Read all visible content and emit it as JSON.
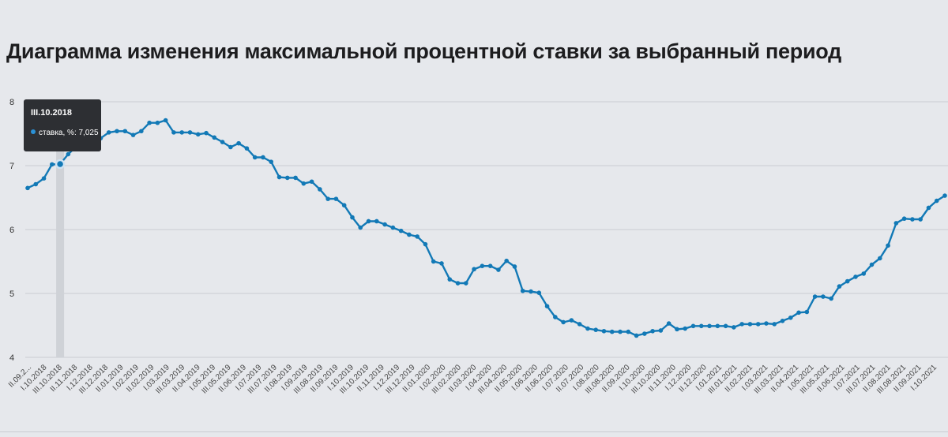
{
  "chart_data": {
    "type": "line",
    "title": "Диаграмма изменения максимальной процентной ставки за выбранный период",
    "ylim": [
      4,
      8
    ],
    "yticks": [
      "4",
      "5",
      "6",
      "7",
      "8"
    ],
    "grid": true,
    "xtick_labels": [
      "II.09.2...",
      "I.10.2018",
      "III.10.2018",
      "II.11.2018",
      "I.12.2018",
      "III.12.2018",
      "II.01.2019",
      "I.02.2019",
      "II.02.2019",
      "I.03.2019",
      "III.03.2019",
      "II.04.2019",
      "I.05.2019",
      "III.05.2019",
      "II.06.2019",
      "I.07.2019",
      "III.07.2019",
      "II.08.2019",
      "I.09.2019",
      "III.08.2019",
      "II.09.2019",
      "I.10.2019",
      "III.10.2019",
      "II.11.2019",
      "I.12.2019",
      "III.12.2019",
      "II.01.2020",
      "I.02.2020",
      "III.02.2020",
      "II.03.2020",
      "I.04.2020",
      "III.04.2020",
      "II.05.2020",
      "I.06.2020",
      "II.06.2020",
      "I.07.2020",
      "II.07.2020",
      "I.08.2020",
      "III.08.2020",
      "II.09.2020",
      "I.10.2020",
      "III.10.2020",
      "II.11.2020",
      "I.12.2020",
      "II.12.2020",
      "I.01.2021",
      "III.01.2021",
      "II.02.2021",
      "I.03.2021",
      "III.03.2021",
      "II.04.2021",
      "I.05.2021",
      "III.05.2021",
      "II.06.2021",
      "I.07.2021",
      "III.07.2021",
      "II.08.2021",
      "III.08.2021",
      "II.09.2021",
      "I.10.2021"
    ],
    "series": [
      {
        "name": "ставка, %",
        "values": [
          6.65,
          6.71,
          6.8,
          7.02,
          7.025,
          7.18,
          7.3,
          7.38,
          7.38,
          7.43,
          7.52,
          7.54,
          7.54,
          7.48,
          7.54,
          7.67,
          7.67,
          7.71,
          7.52,
          7.52,
          7.52,
          7.49,
          7.51,
          7.44,
          7.37,
          7.29,
          7.35,
          7.27,
          7.13,
          7.13,
          7.06,
          6.82,
          6.81,
          6.81,
          6.72,
          6.75,
          6.63,
          6.48,
          6.48,
          6.38,
          6.19,
          6.03,
          6.13,
          6.13,
          6.08,
          6.03,
          5.98,
          5.92,
          5.89,
          5.77,
          5.5,
          5.47,
          5.22,
          5.16,
          5.16,
          5.38,
          5.43,
          5.43,
          5.37,
          5.51,
          5.42,
          5.04,
          5.03,
          5.01,
          4.8,
          4.63,
          4.55,
          4.58,
          4.52,
          4.45,
          4.43,
          4.41,
          4.4,
          4.4,
          4.4,
          4.34,
          4.37,
          4.41,
          4.42,
          4.53,
          4.44,
          4.45,
          4.49,
          4.49,
          4.49,
          4.49,
          4.49,
          4.47,
          4.52,
          4.52,
          4.52,
          4.53,
          4.52,
          4.57,
          4.62,
          4.7,
          4.71,
          4.95,
          4.95,
          4.92,
          5.11,
          5.19,
          5.26,
          5.31,
          5.45,
          5.55,
          5.75,
          6.1,
          6.17,
          6.16,
          6.16,
          6.34,
          6.45,
          6.53
        ]
      }
    ],
    "tooltip": {
      "index": 4,
      "date": "III.10.2018",
      "label": "ставка, %: 7,025"
    }
  }
}
